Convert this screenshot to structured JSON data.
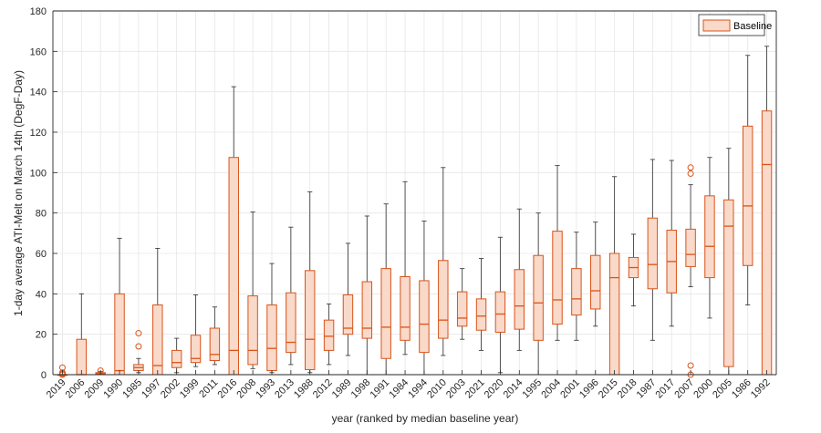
{
  "chart_data": {
    "type": "box",
    "xlabel": "year (ranked by median baseline year)",
    "ylabel": "1-day average ATI-Melt on March 14th (DegF-Day)",
    "ylim": [
      0,
      180
    ],
    "yticks": [
      0,
      20,
      40,
      60,
      80,
      100,
      120,
      140,
      160,
      180
    ],
    "grid": true,
    "legend": {
      "position": "top-right",
      "entries": [
        "Baseline"
      ]
    },
    "series": [
      {
        "name": "Baseline",
        "categories": [
          "2019",
          "2006",
          "2009",
          "1990",
          "1985",
          "1997",
          "2002",
          "1999",
          "2011",
          "2016",
          "2008",
          "1993",
          "2013",
          "1988",
          "2012",
          "1989",
          "1998",
          "1991",
          "1984",
          "1994",
          "2010",
          "2003",
          "2021",
          "2020",
          "2014",
          "1995",
          "2004",
          "2001",
          "1996",
          "2015",
          "2018",
          "1987",
          "2017",
          "2007",
          "2000",
          "2005",
          "1986",
          "1992"
        ],
        "boxes": [
          {
            "min": 0,
            "q1": 0,
            "median": 0,
            "q3": 0,
            "max": 0,
            "outliers": [
              0,
              0.5,
              1,
              3.5
            ]
          },
          {
            "min": 0,
            "q1": 0,
            "median": 0,
            "q3": 17.5,
            "max": 40,
            "outliers": []
          },
          {
            "min": 0,
            "q1": 0,
            "median": 0.5,
            "q3": 1,
            "max": 1.5,
            "outliers": [
              2
            ]
          },
          {
            "min": 0,
            "q1": 0,
            "median": 2,
            "q3": 40,
            "max": 67.5,
            "outliers": []
          },
          {
            "min": 1,
            "q1": 2,
            "median": 3.5,
            "q3": 5,
            "max": 8,
            "outliers": [
              14,
              20.5
            ]
          },
          {
            "min": 0,
            "q1": 0,
            "median": 4.5,
            "q3": 34.5,
            "max": 62.5,
            "outliers": []
          },
          {
            "min": 1,
            "q1": 3.5,
            "median": 6,
            "q3": 12,
            "max": 18,
            "outliers": []
          },
          {
            "min": 4,
            "q1": 6,
            "median": 8,
            "q3": 19.5,
            "max": 39.5,
            "outliers": []
          },
          {
            "min": 5,
            "q1": 7,
            "median": 10,
            "q3": 23,
            "max": 33.5,
            "outliers": []
          },
          {
            "min": 0,
            "q1": 0,
            "median": 12,
            "q3": 107.5,
            "max": 142.5,
            "outliers": []
          },
          {
            "min": 3,
            "q1": 5,
            "median": 12,
            "q3": 39,
            "max": 80.5,
            "outliers": []
          },
          {
            "min": 1,
            "q1": 2,
            "median": 13,
            "q3": 34.5,
            "max": 55,
            "outliers": []
          },
          {
            "min": 5,
            "q1": 11,
            "median": 16,
            "q3": 40.5,
            "max": 73,
            "outliers": []
          },
          {
            "min": 1,
            "q1": 2.5,
            "median": 17.5,
            "q3": 51.5,
            "max": 90.5,
            "outliers": []
          },
          {
            "min": 5,
            "q1": 12,
            "median": 19,
            "q3": 27,
            "max": 35,
            "outliers": []
          },
          {
            "min": 9.5,
            "q1": 20,
            "median": 23,
            "q3": 39.5,
            "max": 65,
            "outliers": []
          },
          {
            "min": 0,
            "q1": 18,
            "median": 23,
            "q3": 46,
            "max": 78.5,
            "outliers": []
          },
          {
            "min": 0,
            "q1": 8,
            "median": 23.5,
            "q3": 52.5,
            "max": 84.5,
            "outliers": []
          },
          {
            "min": 10,
            "q1": 17,
            "median": 23.5,
            "q3": 48.5,
            "max": 95.5,
            "outliers": []
          },
          {
            "min": 0,
            "q1": 11,
            "median": 25,
            "q3": 46.5,
            "max": 76,
            "outliers": []
          },
          {
            "min": 9.5,
            "q1": 18,
            "median": 27,
            "q3": 56.5,
            "max": 102.5,
            "outliers": []
          },
          {
            "min": 17.5,
            "q1": 24,
            "median": 28,
            "q3": 41,
            "max": 52.5,
            "outliers": []
          },
          {
            "min": 12,
            "q1": 22,
            "median": 29,
            "q3": 37.5,
            "max": 57.5,
            "outliers": []
          },
          {
            "min": 1,
            "q1": 21,
            "median": 30,
            "q3": 41,
            "max": 68,
            "outliers": []
          },
          {
            "min": 12,
            "q1": 22.5,
            "median": 34,
            "q3": 52,
            "max": 82,
            "outliers": []
          },
          {
            "min": 0,
            "q1": 17,
            "median": 35.5,
            "q3": 59,
            "max": 80,
            "outliers": []
          },
          {
            "min": 17,
            "q1": 25,
            "median": 37,
            "q3": 71,
            "max": 103.5,
            "outliers": []
          },
          {
            "min": 17,
            "q1": 29.5,
            "median": 37.5,
            "q3": 52.5,
            "max": 70.5,
            "outliers": []
          },
          {
            "min": 24,
            "q1": 32.5,
            "median": 41.5,
            "q3": 59,
            "max": 75.5,
            "outliers": []
          },
          {
            "min": 0,
            "q1": 0,
            "median": 48,
            "q3": 60,
            "max": 98,
            "outliers": []
          },
          {
            "min": 34,
            "q1": 48,
            "median": 53,
            "q3": 58,
            "max": 69.5,
            "outliers": []
          },
          {
            "min": 17,
            "q1": 42.5,
            "median": 54.5,
            "q3": 77.5,
            "max": 106.5,
            "outliers": []
          },
          {
            "min": 24,
            "q1": 40.5,
            "median": 56,
            "q3": 71.5,
            "max": 106,
            "outliers": []
          },
          {
            "min": 43.5,
            "q1": 53.5,
            "median": 59.5,
            "q3": 72,
            "max": 94,
            "outliers": [
              0,
              4.5,
              99.5,
              102.5
            ]
          },
          {
            "min": 28,
            "q1": 48,
            "median": 63.5,
            "q3": 88.5,
            "max": 107.5,
            "outliers": []
          },
          {
            "min": 0,
            "q1": 4,
            "median": 73.5,
            "q3": 86.5,
            "max": 112,
            "outliers": []
          },
          {
            "min": 34.5,
            "q1": 54,
            "median": 83.5,
            "q3": 123,
            "max": 158,
            "outliers": []
          },
          {
            "min": 0,
            "q1": 0,
            "median": 104,
            "q3": 130.5,
            "max": 162.5,
            "outliers": []
          }
        ]
      }
    ],
    "colors": {
      "box_fill": "#f9d9c9",
      "box_edge": "#d9541a",
      "median": "#d9541a",
      "whisker": "#404040",
      "outlier": "#d9541a",
      "grid": "#e6e6e6",
      "axis": "#262626"
    }
  }
}
